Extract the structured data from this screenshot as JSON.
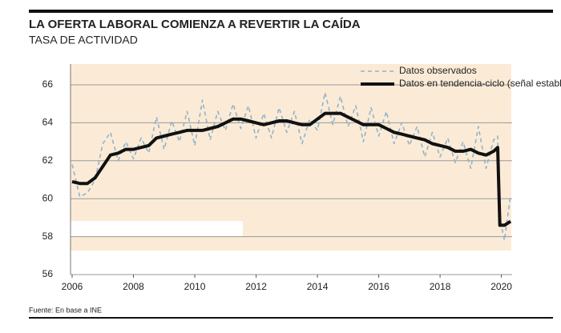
{
  "chart_data": {
    "type": "line",
    "title": "LA OFERTA LABORAL COMIENZA A REVERTIR LA CAÍDA",
    "subtitle": "TASA DE ACTIVIDAD",
    "source": "Fuente: En base a INE",
    "x": [
      2006,
      2006.25,
      2006.5,
      2006.75,
      2007,
      2007.25,
      2007.5,
      2007.75,
      2008,
      2008.25,
      2008.5,
      2008.75,
      2009,
      2009.25,
      2009.5,
      2009.75,
      2010,
      2010.25,
      2010.5,
      2010.75,
      2011,
      2011.25,
      2011.5,
      2011.75,
      2012,
      2012.25,
      2012.5,
      2012.75,
      2013,
      2013.25,
      2013.5,
      2013.75,
      2014,
      2014.25,
      2014.5,
      2014.75,
      2015,
      2015.25,
      2015.5,
      2015.75,
      2016,
      2016.25,
      2016.5,
      2016.75,
      2017,
      2017.25,
      2017.5,
      2017.75,
      2018,
      2018.25,
      2018.5,
      2018.75,
      2019,
      2019.25,
      2019.5,
      2019.75,
      2019.88,
      2019.95,
      2020.1,
      2020.3
    ],
    "series": [
      {
        "name": "Datos observados",
        "color": "#8fb3cc",
        "dashed": true,
        "values": [
          61.8,
          60.1,
          60.3,
          61.0,
          62.9,
          63.5,
          62.0,
          63.0,
          62.1,
          63.2,
          62.4,
          64.3,
          62.6,
          64.1,
          63.0,
          64.6,
          62.8,
          65.2,
          63.1,
          64.6,
          63.6,
          65.0,
          63.7,
          64.9,
          63.2,
          64.5,
          63.2,
          64.8,
          63.5,
          64.6,
          62.9,
          64.2,
          63.6,
          65.6,
          63.9,
          65.4,
          63.8,
          64.9,
          63.0,
          64.8,
          63.3,
          64.6,
          62.9,
          64.0,
          62.8,
          63.8,
          62.2,
          63.5,
          62.2,
          63.2,
          61.9,
          63.0,
          61.6,
          63.8,
          61.6,
          63.1,
          63.3,
          59.0,
          57.8,
          60.2
        ]
      },
      {
        "name": "Datos en tendencia-ciclo (señal estable)",
        "color": "#111111",
        "dashed": false,
        "values": [
          60.9,
          60.8,
          60.8,
          61.1,
          61.7,
          62.3,
          62.4,
          62.6,
          62.6,
          62.7,
          62.8,
          63.2,
          63.3,
          63.4,
          63.5,
          63.6,
          63.6,
          63.6,
          63.7,
          63.8,
          64.0,
          64.2,
          64.2,
          64.1,
          64.0,
          63.9,
          64.0,
          64.1,
          64.1,
          64.0,
          63.9,
          63.9,
          64.2,
          64.5,
          64.5,
          64.5,
          64.3,
          64.1,
          63.9,
          63.9,
          63.9,
          63.7,
          63.5,
          63.4,
          63.3,
          63.2,
          63.1,
          62.9,
          62.8,
          62.7,
          62.5,
          62.5,
          62.6,
          62.4,
          62.3,
          62.5,
          62.7,
          58.6,
          58.6,
          58.8
        ]
      }
    ],
    "xlim": [
      2006,
      2020.35
    ],
    "xticks": [
      2006,
      2008,
      2010,
      2012,
      2014,
      2016,
      2018,
      2020
    ],
    "ylim": [
      56,
      66
    ],
    "yticks": [
      56,
      58,
      60,
      62,
      64,
      66
    ],
    "grid": true,
    "legend": "upper right"
  }
}
